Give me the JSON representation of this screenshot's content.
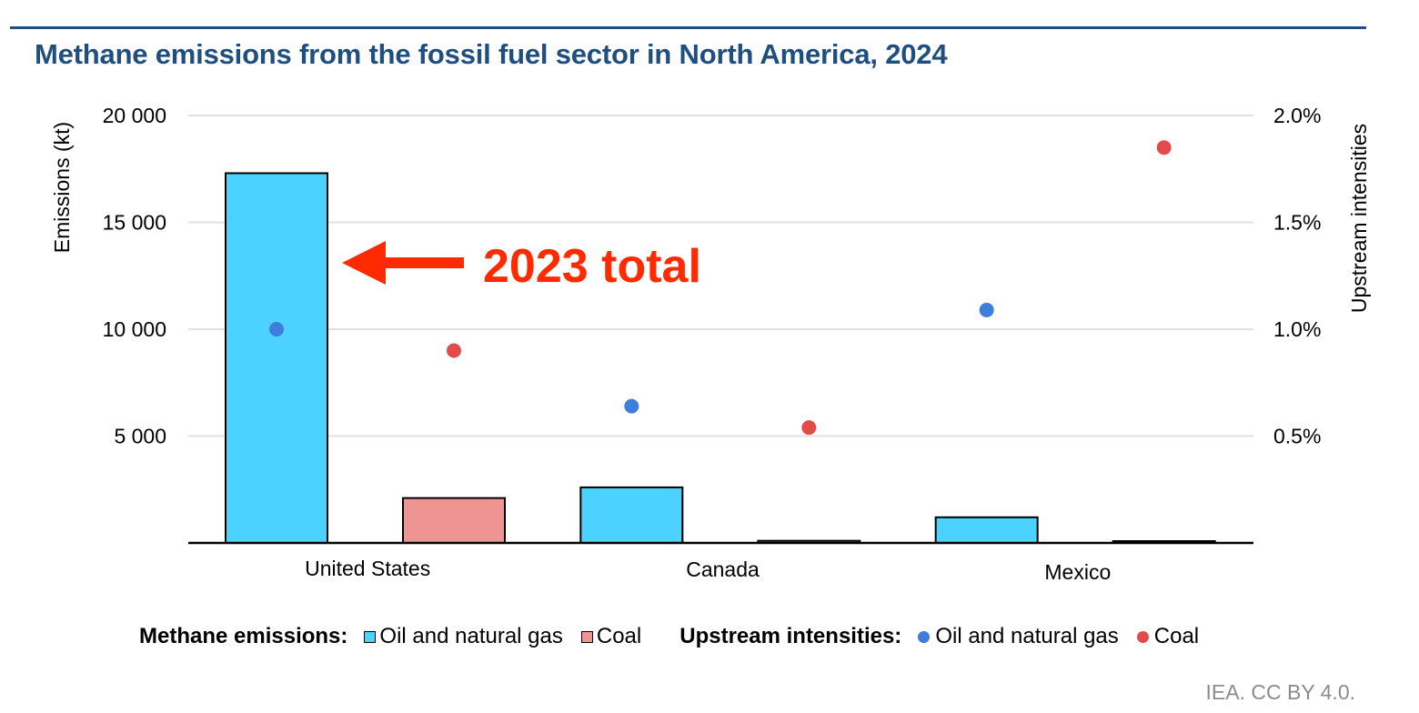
{
  "title": "Methane emissions from the fossil fuel sector in North America, 2024",
  "source": "IEA. CC BY 4.0.",
  "colors": {
    "title": "#1f4e80",
    "oil_gas_bar": "#4bd2ff",
    "coal_bar": "#ee9594",
    "oil_gas_dot": "#3d7ddb",
    "coal_dot": "#e24b4a",
    "annotation": "#ff2a00",
    "grid": "#e0e0e0"
  },
  "annotation": {
    "text": "2023 total",
    "icon": "arrow-left-icon"
  },
  "legend": {
    "emissions_title": "Methane emissions:",
    "emissions_items": [
      "Oil and natural gas",
      "Coal"
    ],
    "intensity_title": "Upstream intensities:",
    "intensity_items": [
      "Oil and natural gas",
      "Coal"
    ]
  },
  "chart_data": {
    "type": "bar",
    "title": "Methane emissions from the fossil fuel sector in North America, 2024",
    "categories": [
      "United States",
      "Canada",
      "Mexico"
    ],
    "xlabel": "",
    "ylabel": "Emissions (kt)",
    "ylim": [
      0,
      20000
    ],
    "yticks": [
      5000,
      10000,
      15000,
      20000
    ],
    "ytick_labels": [
      "5 000",
      "10 000",
      "15 000",
      "20 000"
    ],
    "y2label": "Upstream intensities",
    "y2lim": [
      0,
      2.0
    ],
    "y2ticks": [
      0.5,
      1.0,
      1.5,
      2.0
    ],
    "y2tick_labels": [
      "0.5%",
      "1.0%",
      "1.5%",
      "2.0%"
    ],
    "grid": true,
    "legend_position": "bottom",
    "series": [
      {
        "name": "Oil and natural gas",
        "group": "Methane emissions",
        "kind": "bar",
        "axis": "left",
        "values": [
          17300,
          2600,
          1200
        ]
      },
      {
        "name": "Coal",
        "group": "Methane emissions",
        "kind": "bar",
        "axis": "left",
        "values": [
          2100,
          100,
          50
        ]
      },
      {
        "name": "Oil and natural gas",
        "group": "Upstream intensities",
        "kind": "scatter",
        "axis": "right",
        "values": [
          1.0,
          0.64,
          1.09
        ]
      },
      {
        "name": "Coal",
        "group": "Upstream intensities",
        "kind": "scatter",
        "axis": "right",
        "values": [
          0.9,
          0.54,
          1.85
        ]
      }
    ]
  }
}
